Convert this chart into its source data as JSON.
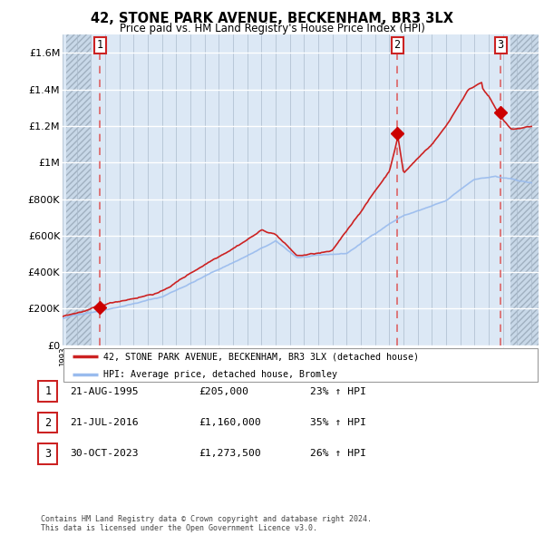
{
  "title1": "42, STONE PARK AVENUE, BECKENHAM, BR3 3LX",
  "title2": "Price paid vs. HM Land Registry's House Price Index (HPI)",
  "ytick_vals": [
    0,
    200000,
    400000,
    600000,
    800000,
    1000000,
    1200000,
    1400000,
    1600000
  ],
  "ylim": [
    0,
    1700000
  ],
  "xlim_start": 1993.25,
  "xlim_end": 2026.5,
  "sale_dates": [
    1995.64,
    2016.55,
    2023.83
  ],
  "sale_prices": [
    205000,
    1160000,
    1273500
  ],
  "sale_labels": [
    "1",
    "2",
    "3"
  ],
  "dashed_line_color": "#dd5555",
  "sale_dot_color": "#cc0000",
  "hpi_line_color": "#99bbee",
  "price_line_color": "#cc2222",
  "chart_bg_color": "#dce8f5",
  "hatch_bg_color": "#c8d8e8",
  "legend_label1": "42, STONE PARK AVENUE, BECKENHAM, BR3 3LX (detached house)",
  "legend_label2": "HPI: Average price, detached house, Bromley",
  "table_entries": [
    {
      "num": "1",
      "date": "21-AUG-1995",
      "price": "£205,000",
      "pct": "23% ↑ HPI"
    },
    {
      "num": "2",
      "date": "21-JUL-2016",
      "price": "£1,160,000",
      "pct": "35% ↑ HPI"
    },
    {
      "num": "3",
      "date": "30-OCT-2023",
      "price": "£1,273,500",
      "pct": "26% ↑ HPI"
    }
  ],
  "footer": "Contains HM Land Registry data © Crown copyright and database right 2024.\nThis data is licensed under the Open Government Licence v3.0.",
  "grid_color": "#aabbcc"
}
